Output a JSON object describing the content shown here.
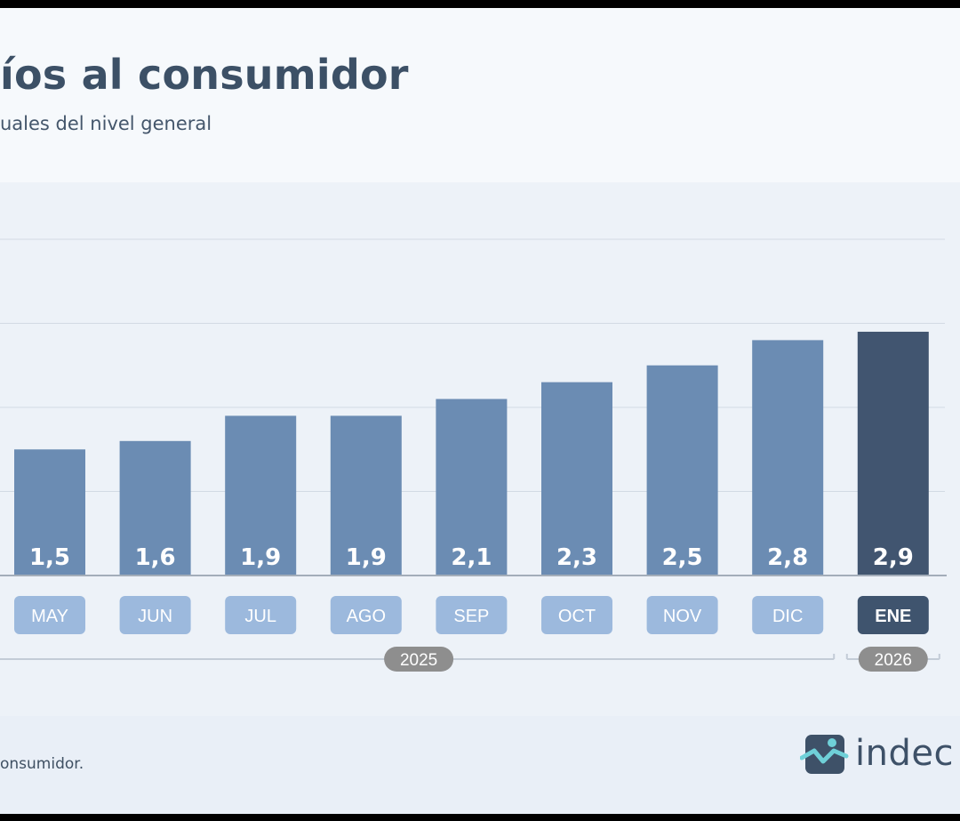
{
  "header": {
    "title": "íos al consumidor",
    "subtitle": "uales del nivel general"
  },
  "footer": {
    "note": "onsumidor.",
    "logo_text": "indec"
  },
  "colors": {
    "bar": "#6b8cb3",
    "bar_highlight": "#415570",
    "month_pill": "#9cb9dd",
    "month_pill_highlight": "#3f546e",
    "year_pill": "#8e8e8e",
    "grid": "#d2dae4"
  },
  "chart_data": {
    "type": "bar",
    "title": "",
    "xlabel": "",
    "ylabel": "",
    "categories": [
      "MAY",
      "JUN",
      "JUL",
      "AGO",
      "SEP",
      "OCT",
      "NOV",
      "DIC",
      "ENE"
    ],
    "values": [
      1.5,
      1.6,
      1.9,
      1.9,
      2.1,
      2.3,
      2.5,
      2.8,
      2.9
    ],
    "value_labels": [
      "1,5",
      "1,6",
      "1,9",
      "1,9",
      "2,1",
      "2,3",
      "2,5",
      "2,8",
      "2,9"
    ],
    "highlight_category": "ENE",
    "gridlines": [
      1,
      2,
      3,
      4
    ],
    "ylim": [
      0,
      4
    ],
    "grid": true,
    "year_groups": [
      {
        "label": "2025",
        "categories": [
          "MAY",
          "JUN",
          "JUL",
          "AGO",
          "SEP",
          "OCT",
          "NOV",
          "DIC"
        ]
      },
      {
        "label": "2026",
        "categories": [
          "ENE"
        ]
      }
    ]
  }
}
